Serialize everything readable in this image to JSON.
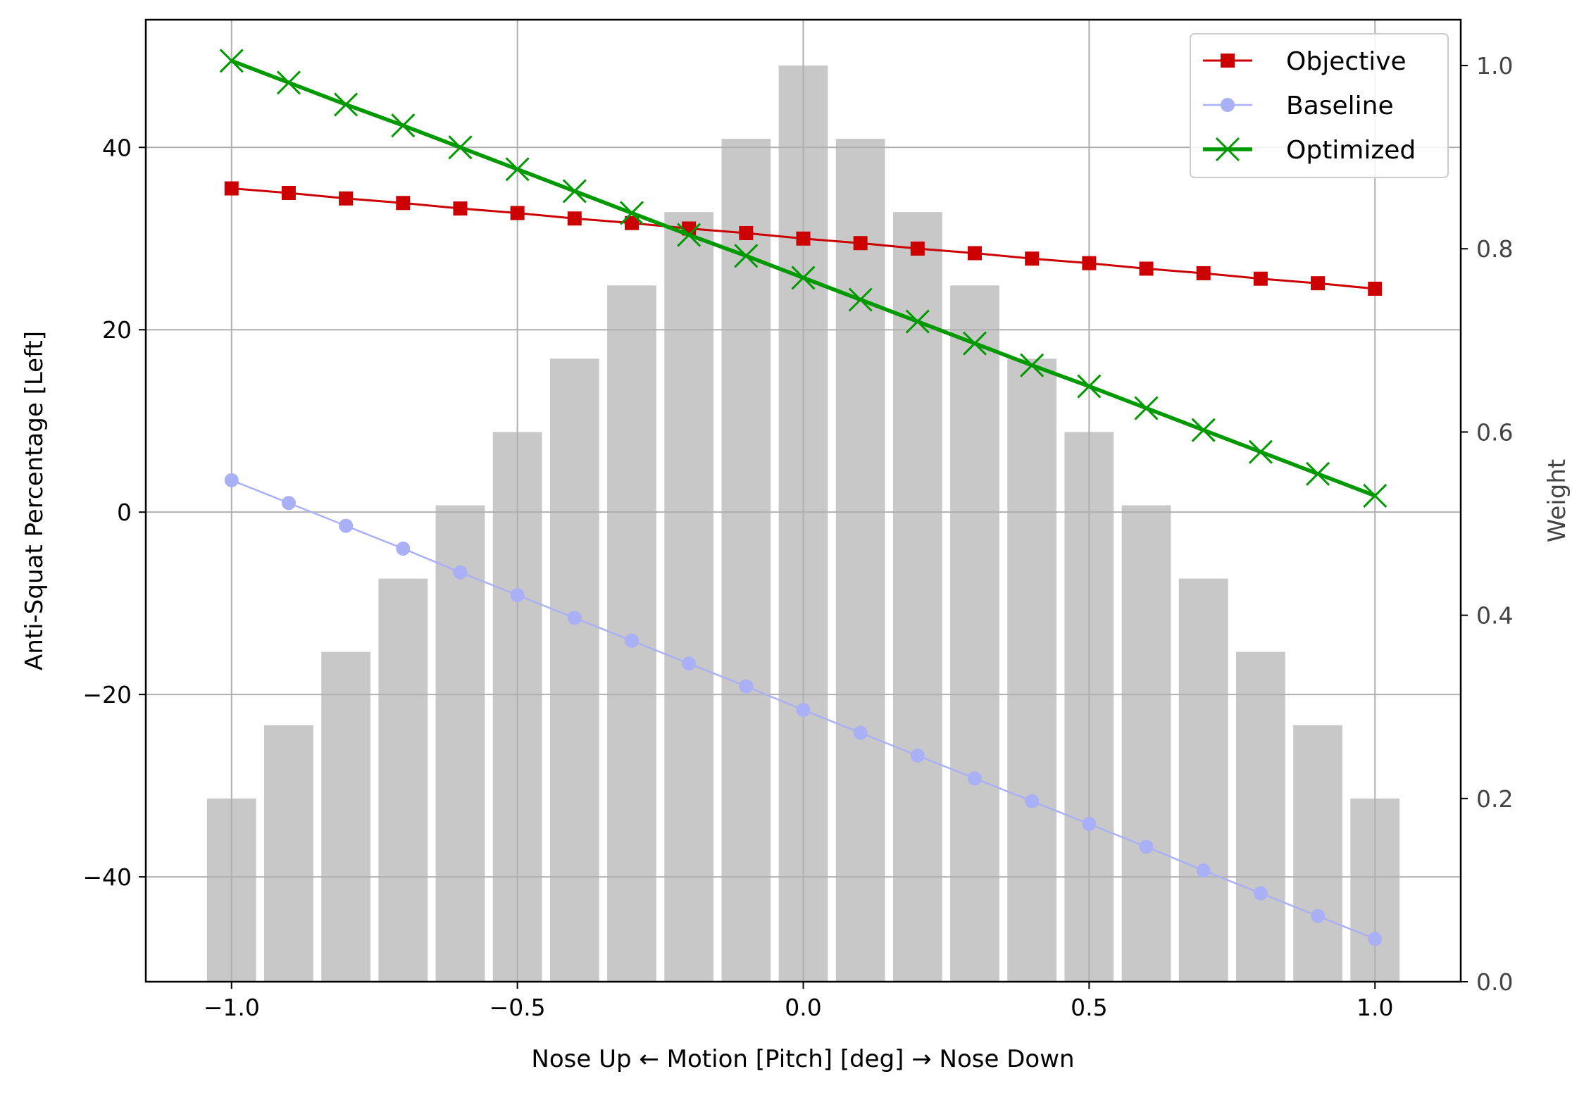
{
  "chart_data": {
    "type": "line",
    "xlabel": "Nose Up ← Motion [Pitch] [deg] → Nose Down",
    "ylabel": "Anti-Squat Percentage [Left]",
    "y2label": "Weight",
    "xlim": [
      -1.15,
      1.15
    ],
    "ylim": [
      -51.5,
      54
    ],
    "y2lim": [
      0,
      1.05
    ],
    "xticks": [
      -1.0,
      -0.5,
      0.0,
      0.5,
      1.0
    ],
    "xtick_labels": [
      "−1.0",
      "−0.5",
      "0.0",
      "0.5",
      "1.0"
    ],
    "yticks": [
      -40,
      -20,
      0,
      20,
      40
    ],
    "ytick_labels": [
      "−40",
      "−20",
      "0",
      "20",
      "40"
    ],
    "y2ticks": [
      0.0,
      0.2,
      0.4,
      0.6,
      0.8,
      1.0
    ],
    "y2tick_labels": [
      "0.0",
      "0.2",
      "0.4",
      "0.6",
      "0.8",
      "1.0"
    ],
    "grid": true,
    "legend_position": "top-right",
    "x": [
      -1.0,
      -0.9,
      -0.8,
      -0.7,
      -0.6,
      -0.5,
      -0.4,
      -0.3,
      -0.2,
      -0.1,
      0.0,
      0.1,
      0.2,
      0.3,
      0.4,
      0.5,
      0.6,
      0.7,
      0.8,
      0.9,
      1.0
    ],
    "weights": {
      "type": "bar",
      "axis": "right",
      "color": "#c8c8c8",
      "values": [
        0.2,
        0.28,
        0.36,
        0.44,
        0.52,
        0.6,
        0.68,
        0.76,
        0.84,
        0.92,
        1.0,
        0.92,
        0.84,
        0.76,
        0.68,
        0.6,
        0.52,
        0.44,
        0.36,
        0.28,
        0.2
      ]
    },
    "series": [
      {
        "name": "Objective",
        "color": "#cc0000",
        "marker": "square",
        "values": [
          35.5,
          35.0,
          34.4,
          33.9,
          33.3,
          32.8,
          32.2,
          31.7,
          31.1,
          30.6,
          30.0,
          29.5,
          28.9,
          28.4,
          27.8,
          27.3,
          26.7,
          26.2,
          25.6,
          25.1,
          24.5
        ]
      },
      {
        "name": "Baseline",
        "color": "#aab0f5",
        "marker": "circle",
        "values": [
          3.5,
          1.0,
          -1.5,
          -4.0,
          -6.6,
          -9.1,
          -11.6,
          -14.1,
          -16.6,
          -19.1,
          -21.7,
          -24.2,
          -26.7,
          -29.2,
          -31.7,
          -34.2,
          -36.7,
          -39.3,
          -41.8,
          -44.3,
          -46.8
        ]
      },
      {
        "name": "Optimized",
        "color": "#009900",
        "marker": "x",
        "values": [
          49.5,
          47.1,
          44.7,
          42.4,
          40.0,
          37.6,
          35.2,
          32.8,
          30.4,
          28.1,
          25.7,
          23.3,
          20.9,
          18.5,
          16.1,
          13.8,
          11.4,
          9.0,
          6.6,
          4.2,
          1.8
        ]
      }
    ]
  }
}
